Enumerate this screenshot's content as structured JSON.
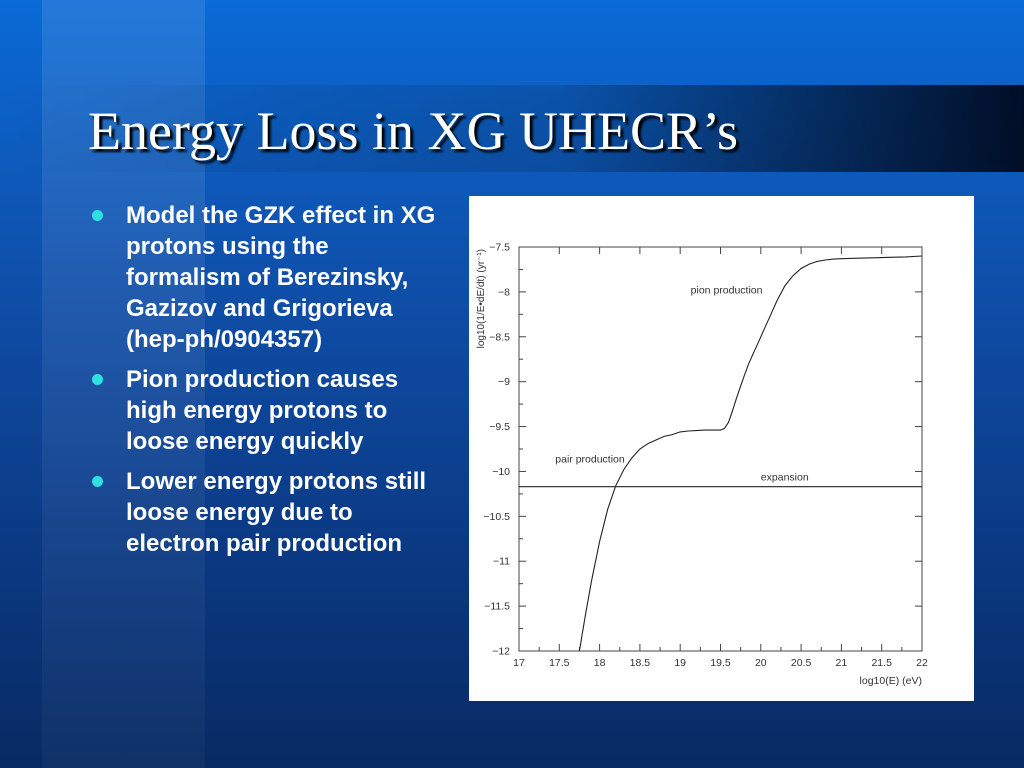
{
  "slide": {
    "title": "Energy Loss in XG UHECR’s",
    "bullets": [
      "Model the GZK effect in XG protons using the formalism of Berezinsky, Gazizov and Grigorieva (hep-ph/0904357)",
      "Pion production causes high energy protons to loose energy quickly",
      "Lower energy protons still loose energy due to electron pair production"
    ]
  },
  "colors": {
    "background": "#0b4aa8",
    "title_text": "#ffffff",
    "bullet_dot": "#2fe0e0",
    "chart_background": "#ffffff",
    "curve": "#222222"
  },
  "chart_data": {
    "type": "line",
    "xlabel": "log10(E) (eV)",
    "ylabel": "log10(1/E•dE/dt) (yr⁻¹)",
    "xlim": [
      17,
      22
    ],
    "ylim": [
      -12,
      -7.5
    ],
    "x_ticks": [
      "17",
      "17.5",
      "18",
      "18.5",
      "19",
      "19.5",
      "20",
      "20.5",
      "21",
      "21.5",
      "22"
    ],
    "y_ticks": [
      "−7.5",
      "−8",
      "−8.5",
      "−9",
      "−9.5",
      "−10",
      "−10.5",
      "−11",
      "−11.5",
      "−12"
    ],
    "grid": false,
    "annotations": [
      {
        "text": "pion production",
        "x": 19.13,
        "y": -8.02
      },
      {
        "text": "pair production",
        "x": 17.45,
        "y": -9.9
      },
      {
        "text": "expansion",
        "x": 20.0,
        "y": -10.1
      }
    ],
    "series": [
      {
        "x": [
          17.75,
          17.82,
          17.9,
          18.0,
          18.1,
          18.2,
          18.3,
          18.4,
          18.5,
          18.6,
          18.7,
          18.8,
          18.9,
          19.0,
          19.1,
          19.2,
          19.3,
          19.4,
          19.5,
          19.55,
          19.6,
          19.65,
          19.7,
          19.75,
          19.8,
          19.85,
          19.9,
          19.95,
          20.0,
          20.05,
          20.1,
          20.15,
          20.2,
          20.3,
          20.4,
          20.5,
          20.6,
          20.7,
          20.8,
          20.9,
          21.0,
          21.2,
          21.4,
          21.6,
          21.8,
          22.0
        ],
        "y": [
          -12.0,
          -11.62,
          -11.22,
          -10.78,
          -10.42,
          -10.16,
          -9.98,
          -9.85,
          -9.75,
          -9.69,
          -9.65,
          -9.61,
          -9.59,
          -9.56,
          -9.55,
          -9.545,
          -9.54,
          -9.54,
          -9.54,
          -9.52,
          -9.45,
          -9.32,
          -9.18,
          -9.05,
          -8.92,
          -8.8,
          -8.7,
          -8.6,
          -8.5,
          -8.4,
          -8.3,
          -8.2,
          -8.1,
          -7.93,
          -7.82,
          -7.74,
          -7.69,
          -7.66,
          -7.645,
          -7.635,
          -7.63,
          -7.625,
          -7.62,
          -7.615,
          -7.61,
          -7.6
        ]
      },
      {
        "x": [
          17.0,
          22.0
        ],
        "y": [
          -10.17,
          -10.17
        ]
      }
    ]
  }
}
